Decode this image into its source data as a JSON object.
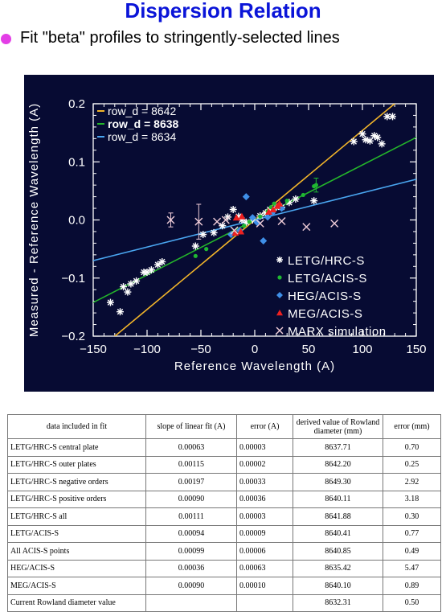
{
  "header": {
    "title": "Dispersion Relation",
    "bullet_text": "Fit \"beta\" profiles to stringently-selected lines"
  },
  "colors": {
    "title": "#0a14d8",
    "bullet": "#e33ee6",
    "panel": "#070b33",
    "fit_8642": "#f2b52a",
    "fit_8638": "#24b52b",
    "fit_8634": "#4aa6f0",
    "letg_hrc": "#ffffff",
    "letg_acis": "#1fb832",
    "heg_acis": "#3f8fe8",
    "meg_acis": "#ee2020",
    "marx": "#f0cdd8"
  },
  "chart_data": {
    "type": "scatter",
    "title": "",
    "xlabel": "Reference Wavelength (A)",
    "ylabel": "Measured - Reference Wavelength (A)",
    "xlim": [
      -150,
      150
    ],
    "ylim": [
      -0.2,
      0.2
    ],
    "xticks": [
      "−150",
      "−100",
      "−50",
      "0",
      "50",
      "100",
      "150"
    ],
    "yticks": [
      "−0.2",
      "−0.1",
      "0.0",
      "0.1",
      "0.2"
    ],
    "fit_lines": [
      {
        "name": "row_d = 8642",
        "color": "#f2b52a",
        "slope": 0.00154,
        "points": [
          [
            -150,
            -0.231
          ],
          [
            150,
            0.231
          ]
        ]
      },
      {
        "name": "row_d = 8638",
        "color": "#24b52b",
        "slope": 0.00095,
        "points": [
          [
            -150,
            -0.142
          ],
          [
            150,
            0.142
          ]
        ]
      },
      {
        "name": "row_d = 8634",
        "color": "#4aa6f0",
        "slope": 0.00047,
        "points": [
          [
            -150,
            -0.07
          ],
          [
            150,
            0.07
          ]
        ]
      }
    ],
    "series": [
      {
        "name": "LETG/HRC-S",
        "color": "#ffffff",
        "marker": "star",
        "points": [
          [
            -134,
            -0.142
          ],
          [
            -125,
            -0.158
          ],
          [
            -122,
            -0.115
          ],
          [
            -118,
            -0.124
          ],
          [
            -115,
            -0.11
          ],
          [
            -110,
            -0.105
          ],
          [
            -103,
            -0.09
          ],
          [
            -100,
            -0.09
          ],
          [
            -96,
            -0.086
          ],
          [
            -90,
            -0.077
          ],
          [
            -86,
            -0.072
          ],
          [
            -55,
            -0.045
          ],
          [
            -48,
            -0.025
          ],
          [
            -38,
            -0.022
          ],
          [
            -30,
            -0.01
          ],
          [
            -25,
            0.005
          ],
          [
            -20,
            0.018
          ],
          [
            -15,
            0.006
          ],
          [
            -12,
            0.0
          ],
          [
            -8,
            -0.004
          ],
          [
            -2,
            0.0
          ],
          [
            5,
            0.007
          ],
          [
            10,
            0.012
          ],
          [
            14,
            0.018
          ],
          [
            20,
            0.022
          ],
          [
            25,
            0.022
          ],
          [
            32,
            0.03
          ],
          [
            38,
            0.036
          ],
          [
            55,
            0.033
          ],
          [
            92,
            0.135
          ],
          [
            100,
            0.148
          ],
          [
            103,
            0.138
          ],
          [
            107,
            0.136
          ],
          [
            111,
            0.145
          ],
          [
            114,
            0.142
          ],
          [
            118,
            0.131
          ],
          [
            123,
            0.178
          ],
          [
            128,
            0.178
          ]
        ]
      },
      {
        "name": "LETG/ACIS-S",
        "color": "#1fb832",
        "marker": "dot",
        "points": [
          [
            -55,
            -0.062
          ],
          [
            -45,
            -0.05
          ],
          [
            -18,
            -0.022
          ],
          [
            -10,
            -0.01
          ],
          [
            -5,
            -0.003
          ],
          [
            5,
            0.006
          ],
          [
            12,
            0.015
          ],
          [
            15,
            0.022
          ],
          [
            18,
            0.028
          ],
          [
            30,
            0.033
          ],
          [
            45,
            0.043
          ],
          [
            55,
            0.058
          ],
          [
            57,
            0.06
          ]
        ],
        "error_bars": [
          [
            57,
            0.06,
            0.012
          ]
        ]
      },
      {
        "name": "HEG/ACIS-S",
        "color": "#3f8fe8",
        "marker": "diamond",
        "points": [
          [
            -22,
            -0.025
          ],
          [
            -14,
            -0.018
          ],
          [
            -8,
            0.04
          ],
          [
            -2,
            0.004
          ],
          [
            2,
            -0.004
          ],
          [
            8,
            -0.036
          ],
          [
            12,
            0.005
          ],
          [
            16,
            0.012
          ],
          [
            25,
            0.02
          ]
        ]
      },
      {
        "name": "MEG/ACIS-S",
        "color": "#ee2020",
        "marker": "triangle",
        "points": [
          [
            -18,
            -0.022
          ],
          [
            -13,
            -0.02
          ],
          [
            -17,
            0.004
          ],
          [
            -12,
            0.006
          ],
          [
            13,
            0.014
          ],
          [
            17,
            0.018
          ],
          [
            21,
            0.024
          ],
          [
            23,
            0.028
          ]
        ]
      },
      {
        "name": "MARX simulation",
        "color": "#f0cdd8",
        "marker": "x",
        "points": [
          [
            -78,
            0.0
          ],
          [
            -52,
            -0.003
          ],
          [
            -35,
            -0.003
          ],
          [
            -27,
            0.0
          ],
          [
            -19,
            -0.018
          ],
          [
            5,
            -0.006
          ],
          [
            25,
            -0.002
          ],
          [
            48,
            -0.012
          ],
          [
            74,
            -0.006
          ]
        ],
        "error_bars": [
          [
            -78,
            0.0,
            0.012
          ],
          [
            -52,
            -0.003,
            0.03
          ]
        ]
      }
    ],
    "legend": {
      "placement": "bottom-right"
    },
    "fit_legend": {
      "placement": "top-left"
    },
    "grid": false
  },
  "table": {
    "headers": [
      "data included in fit",
      "slope of linear fit (A)",
      "error (A)",
      "derived value of Rowland diameter (mm)",
      "error (mm)"
    ],
    "rows": [
      [
        "LETG/HRC-S  central plate",
        "0.00063",
        "0.00003",
        "8637.71",
        "0.70"
      ],
      [
        "LETG/HRC-S  outer plates",
        "0.00115",
        "0.00002",
        "8642.20",
        "0.25"
      ],
      [
        "LETG/HRC-S  negative orders",
        "0.00197",
        "0.00033",
        "8649.30",
        "2.92"
      ],
      [
        "LETG/HRC-S  positive orders",
        "0.00090",
        "0.00036",
        "8640.11",
        "3.18"
      ],
      [
        "LETG/HRC-S  all",
        "0.00111",
        "0.00003",
        "8641.88",
        "0.30"
      ],
      [
        "LETG/ACIS-S",
        "0.00094",
        "0.00009",
        "8640.41",
        "0.77"
      ],
      [
        "All ACIS-S points",
        "0.00099",
        "0.00006",
        "8640.85",
        "0.49"
      ],
      [
        "HEG/ACIS-S",
        "0.00036",
        "0.00063",
        "8635.42",
        "5.47"
      ],
      [
        "MEG/ACIS-S",
        "0.00090",
        "0.00010",
        "8640.10",
        "0.89"
      ],
      [
        "Current Rowland diameter value",
        "",
        "",
        "8632.31",
        "0.50"
      ]
    ]
  }
}
